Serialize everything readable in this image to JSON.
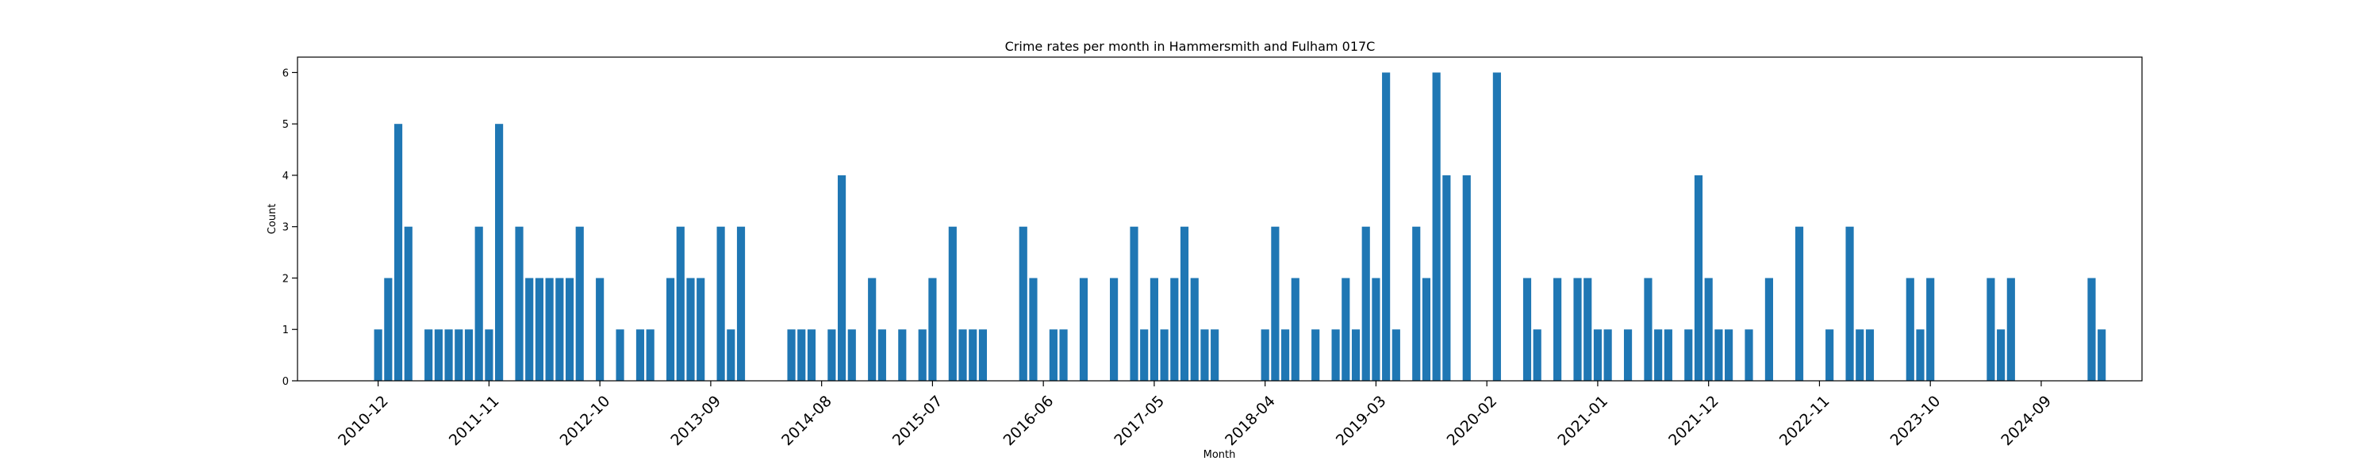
{
  "chart_data": {
    "type": "bar",
    "title": "Crime rates per month in Hammersmith and Fulham 017C",
    "xlabel": "Month",
    "ylabel": "Count",
    "ylim": [
      0,
      6.3
    ],
    "y_ticks": [
      0,
      1,
      2,
      3,
      4,
      5,
      6
    ],
    "grid": false,
    "color": "#1f77b4",
    "x_start": "2010-04",
    "x_end": "2025-07",
    "x_ticks": [
      "2010-12",
      "2011-11",
      "2012-10",
      "2013-09",
      "2014-08",
      "2015-07",
      "2016-06",
      "2017-05",
      "2018-04",
      "2019-03",
      "2020-02",
      "2021-01",
      "2021-12",
      "2022-11",
      "2023-10",
      "2024-09"
    ],
    "x": [
      "2010-12",
      "2011-01",
      "2011-02",
      "2011-03",
      "2011-05",
      "2011-06",
      "2011-07",
      "2011-08",
      "2011-09",
      "2011-10",
      "2011-11",
      "2011-12",
      "2012-02",
      "2012-03",
      "2012-04",
      "2012-05",
      "2012-06",
      "2012-07",
      "2012-08",
      "2012-10",
      "2012-12",
      "2013-02",
      "2013-03",
      "2013-05",
      "2013-06",
      "2013-07",
      "2013-08",
      "2013-10",
      "2013-11",
      "2013-12",
      "2014-05",
      "2014-06",
      "2014-07",
      "2014-09",
      "2014-10",
      "2014-11",
      "2015-01",
      "2015-02",
      "2015-04",
      "2015-06",
      "2015-07",
      "2015-09",
      "2015-10",
      "2015-11",
      "2015-12",
      "2016-04",
      "2016-05",
      "2016-07",
      "2016-08",
      "2016-10",
      "2017-01",
      "2017-03",
      "2017-04",
      "2017-05",
      "2017-06",
      "2017-07",
      "2017-08",
      "2017-09",
      "2017-10",
      "2017-11",
      "2018-04",
      "2018-05",
      "2018-06",
      "2018-07",
      "2018-09",
      "2018-11",
      "2018-12",
      "2019-01",
      "2019-02",
      "2019-03",
      "2019-04",
      "2019-05",
      "2019-07",
      "2019-08",
      "2019-09",
      "2019-10",
      "2019-12",
      "2020-03",
      "2020-06",
      "2020-07",
      "2020-09",
      "2020-11",
      "2020-12",
      "2021-01",
      "2021-02",
      "2021-04",
      "2021-06",
      "2021-07",
      "2021-08",
      "2021-10",
      "2021-11",
      "2021-12",
      "2022-01",
      "2022-02",
      "2022-04",
      "2022-06",
      "2022-09",
      "2022-12",
      "2023-02",
      "2023-03",
      "2023-04",
      "2023-08",
      "2023-09",
      "2023-10",
      "2024-04",
      "2024-05",
      "2024-06",
      "2025-02",
      "2025-03"
    ],
    "values": [
      1,
      2,
      5,
      3,
      1,
      1,
      1,
      1,
      1,
      3,
      1,
      5,
      3,
      2,
      2,
      2,
      2,
      2,
      3,
      2,
      1,
      1,
      1,
      2,
      3,
      2,
      2,
      3,
      1,
      3,
      1,
      1,
      1,
      1,
      4,
      1,
      2,
      1,
      1,
      1,
      2,
      3,
      1,
      1,
      1,
      3,
      2,
      1,
      1,
      2,
      2,
      3,
      1,
      2,
      1,
      2,
      3,
      2,
      1,
      1,
      1,
      3,
      1,
      2,
      1,
      1,
      2,
      1,
      3,
      2,
      6,
      1,
      3,
      2,
      6,
      4,
      4,
      6,
      2,
      1,
      2,
      2,
      2,
      1,
      1,
      1,
      2,
      1,
      1,
      1,
      4,
      2,
      1,
      1,
      1,
      2,
      3,
      1,
      3,
      1,
      1,
      2,
      1,
      2,
      2,
      1,
      2,
      2,
      1
    ]
  }
}
